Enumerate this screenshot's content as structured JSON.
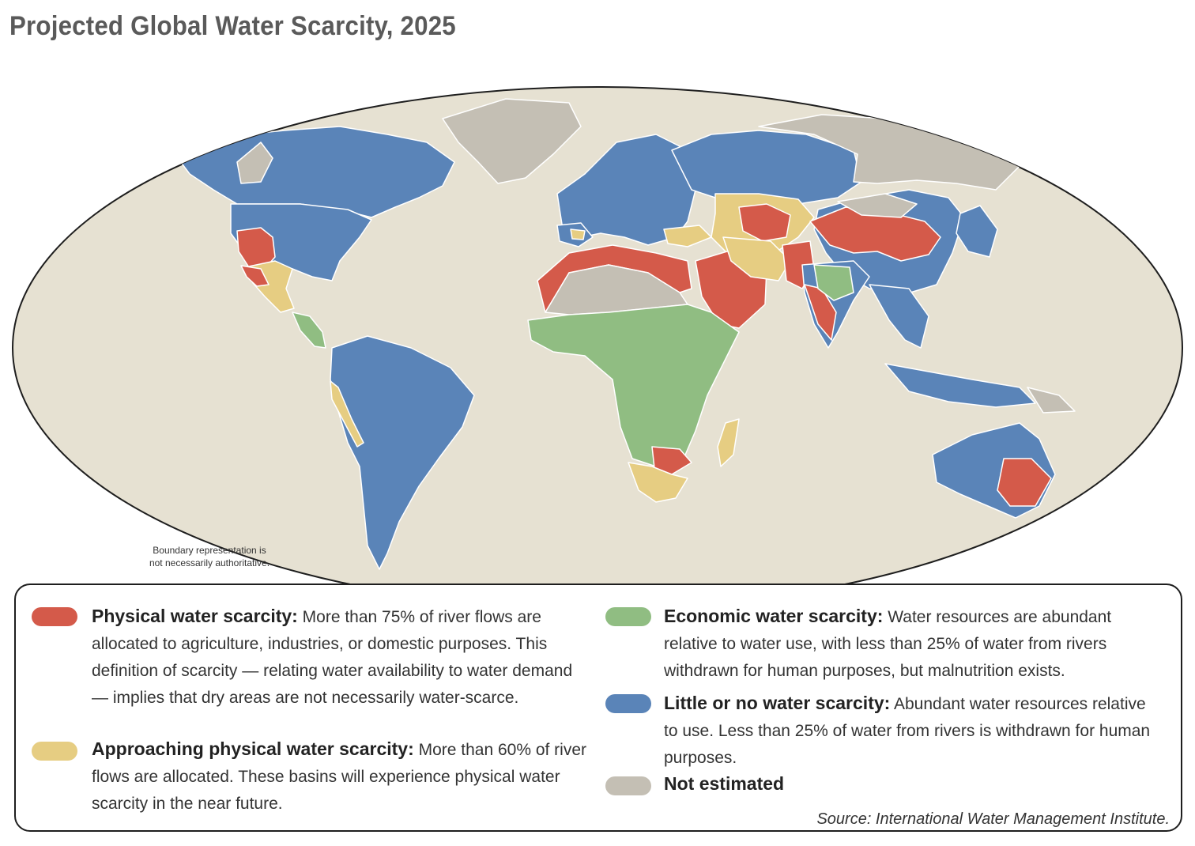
{
  "title": "Projected Global Water Scarcity, 2025",
  "boundary_note_line1": "Boundary representation is",
  "boundary_note_line2": "not necessarily authoritative.",
  "colors": {
    "ocean": "#e6e1d2",
    "land_not_estimated": "#c4bfb4",
    "physical": "#d45a4a",
    "approaching": "#e6cd82",
    "economic": "#90bd82",
    "little": "#5a84b8",
    "border": "#ffffff"
  },
  "legend": {
    "physical": {
      "label": "Physical water scarcity:",
      "text": " More than 75% of river  flows are allocated to agriculture, industries, or domestic purposes. This definition of scarcity — relating water availability to water demand — implies that dry areas are not necessarily water-scarce."
    },
    "approaching": {
      "label": "Approaching physical water scarcity:",
      "text": " More than 60% of river flows are allocated. These basins will experience physical water scarcity in the near future."
    },
    "economic": {
      "label": "Economic water scarcity:",
      "text": " Water resources are abundant relative to water use, with less than 25% of water from rivers withdrawn for human purposes, but malnutrition exists."
    },
    "little": {
      "label": "Little or no water scarcity:",
      "text": " Abundant water resources relative to use. Less than 25% of water from rivers is withdrawn for human purposes."
    },
    "not_estimated": {
      "label": "Not estimated",
      "text": ""
    }
  },
  "source": "Source: International Water Management Institute."
}
